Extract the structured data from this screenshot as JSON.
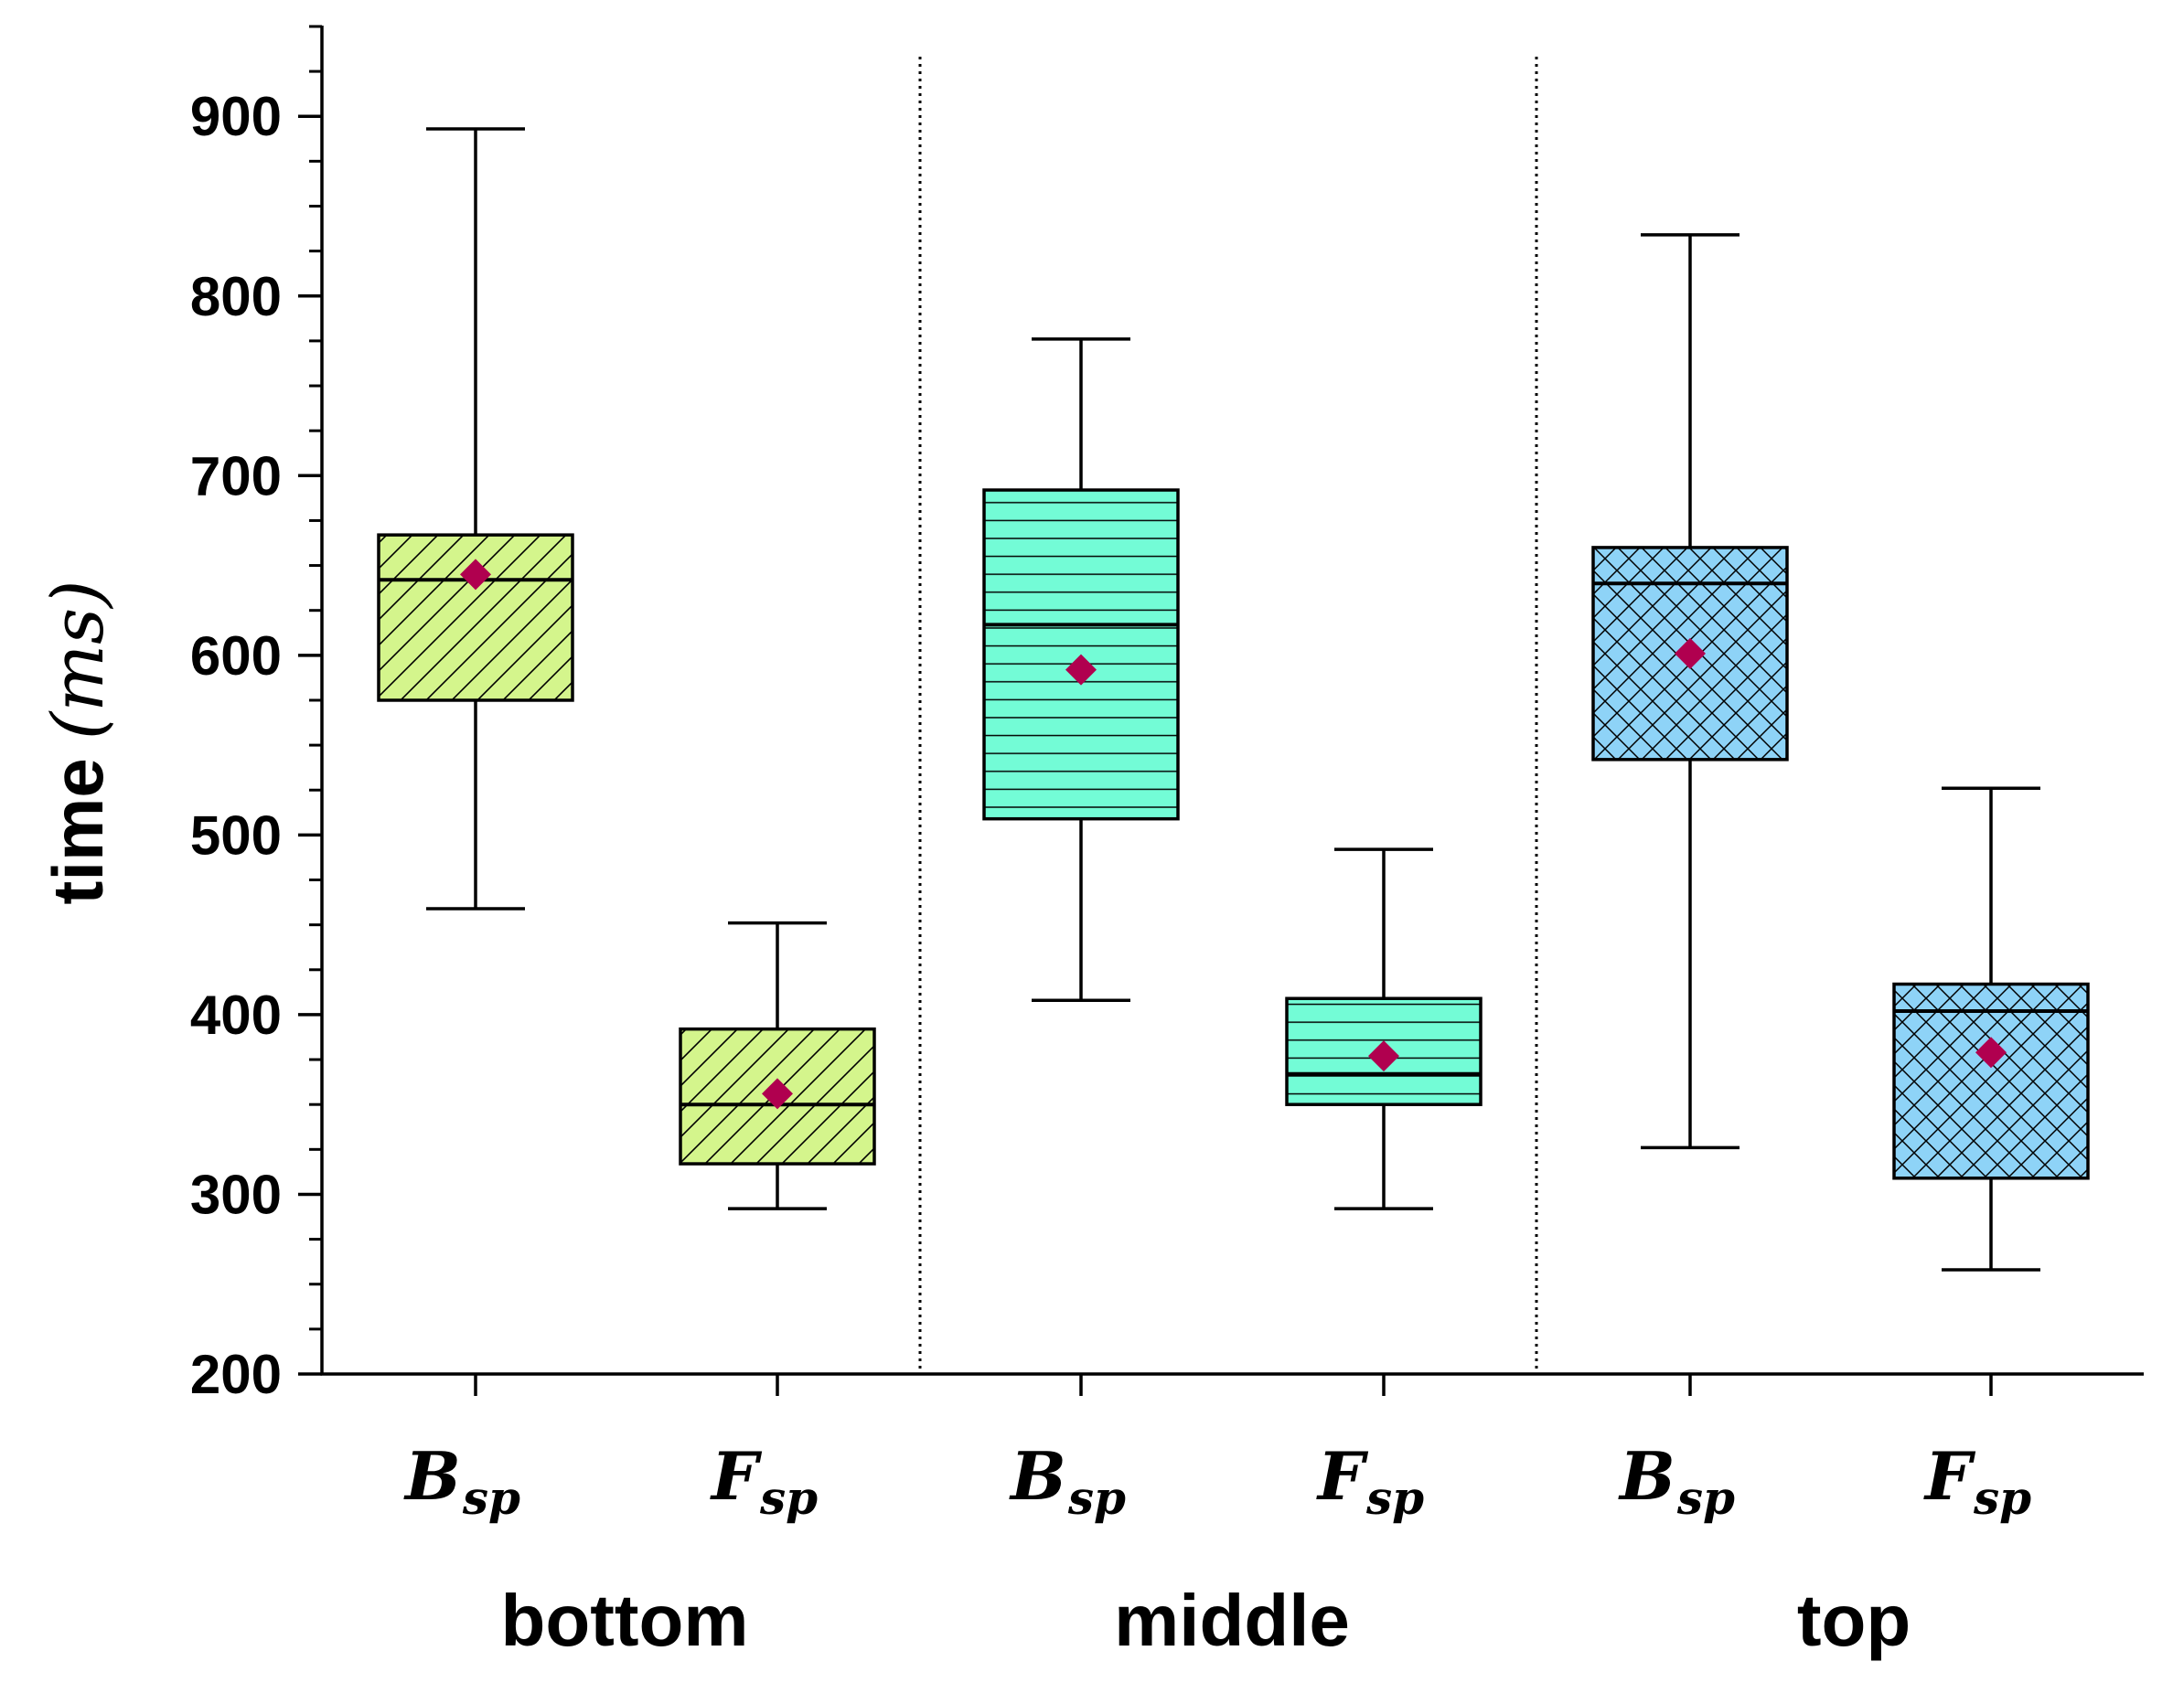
{
  "chart_data": {
    "type": "box",
    "ylabel": {
      "text": "time",
      "unit": "(ms)"
    },
    "ylim": [
      200,
      950
    ],
    "yticks": [
      "200",
      "300",
      "400",
      "500",
      "600",
      "700",
      "800",
      "900"
    ],
    "minor_tick_step": 25,
    "category_labels": [
      {
        "main": "B",
        "sub": "sp"
      },
      {
        "main": "F",
        "sub": "sp"
      },
      {
        "main": "B",
        "sub": "sp"
      },
      {
        "main": "F",
        "sub": "sp"
      },
      {
        "main": "B",
        "sub": "sp"
      },
      {
        "main": "F",
        "sub": "sp"
      }
    ],
    "groups": [
      "bottom",
      "middle",
      "top"
    ],
    "boxes": [
      {
        "group": "bottom",
        "min": 459,
        "q1": 575,
        "median": 642,
        "q3": 667,
        "max": 893,
        "mean": 645
      },
      {
        "group": "bottom",
        "min": 292,
        "q1": 317,
        "median": 350,
        "q3": 392,
        "max": 451,
        "mean": 356
      },
      {
        "group": "middle",
        "min": 408,
        "q1": 509,
        "median": 617,
        "q3": 692,
        "max": 776,
        "mean": 592
      },
      {
        "group": "middle",
        "min": 292,
        "q1": 350,
        "median": 367,
        "q3": 409,
        "max": 492,
        "mean": 377
      },
      {
        "group": "top",
        "min": 326,
        "q1": 542,
        "median": 640,
        "q3": 660,
        "max": 834,
        "mean": 601
      },
      {
        "group": "top",
        "min": 258,
        "q1": 309,
        "median": 402,
        "q3": 417,
        "max": 526,
        "mean": 379
      }
    ],
    "group_styles": [
      {
        "group": "bottom",
        "fill": "#d4f58c",
        "pattern": "diagonal"
      },
      {
        "group": "middle",
        "fill": "#73fcd6",
        "pattern": "horizontal"
      },
      {
        "group": "top",
        "fill": "#8ed3f7",
        "pattern": "crosshatch"
      }
    ],
    "mean_marker": {
      "shape": "diamond",
      "color": "#b0004f"
    },
    "separators": "dotted lines between groups"
  }
}
